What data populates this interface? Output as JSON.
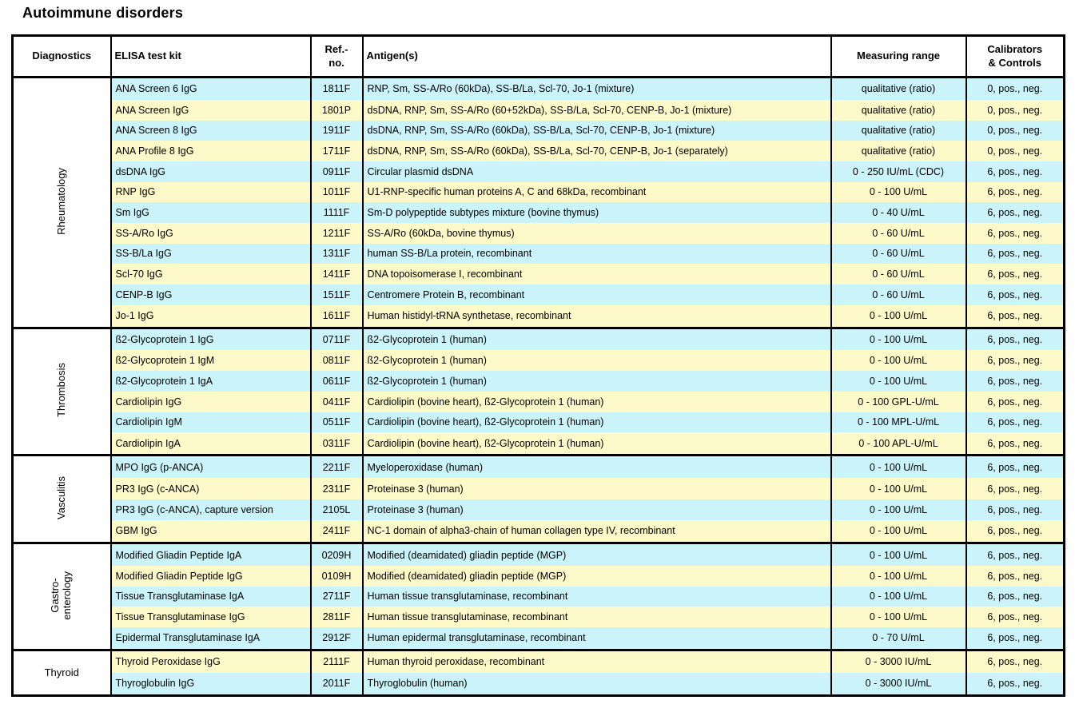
{
  "title": "Autoimmune disorders",
  "table": {
    "headers": {
      "diagnostics": "Diagnostics",
      "kit": "ELISA test kit",
      "ref": "Ref.-\nno.",
      "antigen": "Antigen(s)",
      "range": "Measuring range",
      "calibrators": "Calibrators\n& Controls"
    },
    "row_colors": {
      "cyan": "#cbf3fa",
      "yellow": "#fdf9c8"
    },
    "groups": [
      {
        "name": "Rheumatology",
        "orientation": "vertical",
        "rows": [
          {
            "kit": "ANA Screen 6 IgG",
            "ref": "1811F",
            "antigen": "RNP, Sm, SS-A/Ro (60kDa), SS-B/La, Scl-70, Jo-1 (mixture)",
            "range": "qualitative (ratio)",
            "cal": "0, pos., neg."
          },
          {
            "kit": "ANA Screen IgG",
            "ref": "1801P",
            "antigen": "dsDNA, RNP, Sm, SS-A/Ro (60+52kDa), SS-B/La, Scl-70, CENP-B, Jo-1 (mixture)",
            "range": "qualitative (ratio)",
            "cal": "0, pos., neg."
          },
          {
            "kit": "ANA Screen 8 IgG",
            "ref": "1911F",
            "antigen": "dsDNA, RNP, Sm, SS-A/Ro (60kDa), SS-B/La, Scl-70, CENP-B, Jo-1 (mixture)",
            "range": "qualitative (ratio)",
            "cal": "0, pos., neg."
          },
          {
            "kit": "ANA Profile 8 IgG",
            "ref": "1711F",
            "antigen": "dsDNA, RNP, Sm, SS-A/Ro (60kDa), SS-B/La, Scl-70, CENP-B, Jo-1 (separately)",
            "range": "qualitative (ratio)",
            "cal": "0, pos., neg."
          },
          {
            "kit": "dsDNA IgG",
            "ref": "0911F",
            "antigen": "Circular plasmid dsDNA",
            "range": "0 - 250 IU/mL (CDC)",
            "cal": "6, pos., neg."
          },
          {
            "kit": "RNP IgG",
            "ref": "1011F",
            "antigen": "U1-RNP-specific human proteins A, C and 68kDa, recombinant",
            "range": "0 - 100 U/mL",
            "cal": "6, pos., neg."
          },
          {
            "kit": "Sm IgG",
            "ref": "1111F",
            "antigen": "Sm-D polypeptide subtypes mixture (bovine thymus)",
            "range": "0 - 40 U/mL",
            "cal": "6, pos., neg."
          },
          {
            "kit": "SS-A/Ro IgG",
            "ref": "1211F",
            "antigen": "SS-A/Ro (60kDa, bovine thymus)",
            "range": "0 - 60 U/mL",
            "cal": "6, pos., neg."
          },
          {
            "kit": "SS-B/La IgG",
            "ref": "1311F",
            "antigen": "human SS-B/La protein, recombinant",
            "range": "0 - 60 U/mL",
            "cal": "6, pos., neg."
          },
          {
            "kit": "Scl-70 IgG",
            "ref": "1411F",
            "antigen": "DNA topoisomerase I, recombinant",
            "range": "0 - 60 U/mL",
            "cal": "6, pos., neg."
          },
          {
            "kit": "CENP-B IgG",
            "ref": "1511F",
            "antigen": "Centromere Protein B, recombinant",
            "range": "0 - 60 U/mL",
            "cal": "6, pos., neg."
          },
          {
            "kit": "Jo-1 IgG",
            "ref": "1611F",
            "antigen": "Human histidyl-tRNA synthetase, recombinant",
            "range": "0 - 100 U/mL",
            "cal": "6, pos., neg."
          }
        ]
      },
      {
        "name": "Thrombosis",
        "orientation": "vertical",
        "rows": [
          {
            "kit": "ß2-Glycoprotein 1 IgG",
            "ref": "0711F",
            "antigen": "ß2-Glycoprotein 1 (human)",
            "range": "0 - 100 U/mL",
            "cal": "6, pos., neg."
          },
          {
            "kit": "ß2-Glycoprotein 1 IgM",
            "ref": "0811F",
            "antigen": "ß2-Glycoprotein 1 (human)",
            "range": "0 - 100 U/mL",
            "cal": "6, pos., neg."
          },
          {
            "kit": "ß2-Glycoprotein 1 IgA",
            "ref": "0611F",
            "antigen": "ß2-Glycoprotein 1 (human)",
            "range": "0 - 100 U/mL",
            "cal": "6, pos., neg."
          },
          {
            "kit": "Cardiolipin IgG",
            "ref": "0411F",
            "antigen": "Cardiolipin (bovine heart), ß2-Glycoprotein 1 (human)",
            "range": "0 - 100 GPL-U/mL",
            "cal": "6, pos., neg."
          },
          {
            "kit": "Cardiolipin IgM",
            "ref": "0511F",
            "antigen": "Cardiolipin (bovine heart), ß2-Glycoprotein 1 (human)",
            "range": "0 - 100 MPL-U/mL",
            "cal": "6, pos., neg."
          },
          {
            "kit": "Cardiolipin IgA",
            "ref": "0311F",
            "antigen": "Cardiolipin (bovine heart), ß2-Glycoprotein 1 (human)",
            "range": "0 - 100 APL-U/mL",
            "cal": "6, pos., neg."
          }
        ]
      },
      {
        "name": "Vasculitis",
        "orientation": "vertical",
        "rows": [
          {
            "kit": "MPO IgG (p-ANCA)",
            "ref": "2211F",
            "antigen": "Myeloperoxidase (human)",
            "range": "0 - 100 U/mL",
            "cal": "6, pos., neg."
          },
          {
            "kit": "PR3 IgG (c-ANCA)",
            "ref": "2311F",
            "antigen": "Proteinase 3 (human)",
            "range": "0 - 100 U/mL",
            "cal": "6, pos., neg."
          },
          {
            "kit": "PR3 IgG (c-ANCA), capture version",
            "ref": "2105L",
            "antigen": "Proteinase 3 (human)",
            "range": "0 - 100 U/mL",
            "cal": "6, pos., neg."
          },
          {
            "kit": "GBM IgG",
            "ref": "2411F",
            "antigen": "NC-1 domain of alpha3-chain of human collagen type IV, recombinant",
            "range": "0 - 100 U/mL",
            "cal": "6, pos., neg."
          }
        ]
      },
      {
        "name": "Gastro-\nenterology",
        "orientation": "vertical",
        "rows": [
          {
            "kit": "Modified Gliadin Peptide IgA",
            "ref": "0209H",
            "antigen": "Modified (deamidated) gliadin peptide (MGP)",
            "range": "0 - 100 U/mL",
            "cal": "6, pos., neg."
          },
          {
            "kit": "Modified Gliadin Peptide IgG",
            "ref": "0109H",
            "antigen": "Modified (deamidated) gliadin peptide (MGP)",
            "range": "0 - 100 U/mL",
            "cal": "6, pos., neg."
          },
          {
            "kit": "Tissue Transglutaminase IgA",
            "ref": "2711F",
            "antigen": "Human tissue transglutaminase, recombinant",
            "range": "0 - 100 U/mL",
            "cal": "6, pos., neg."
          },
          {
            "kit": "Tissue Transglutaminase IgG",
            "ref": "2811F",
            "antigen": "Human tissue transglutaminase, recombinant",
            "range": "0 - 100 U/mL",
            "cal": "6, pos., neg."
          },
          {
            "kit": "Epidermal Transglutaminase IgA",
            "ref": "2912F",
            "antigen": "Human epidermal transglutaminase, recombinant",
            "range": "0 - 70 U/mL",
            "cal": "6, pos., neg."
          }
        ]
      },
      {
        "name": "Thyroid",
        "orientation": "horizontal",
        "rows": [
          {
            "kit": "Thyroid Peroxidase IgG",
            "ref": "2111F",
            "antigen": "Human thyroid peroxidase, recombinant",
            "range": "0 - 3000 IU/mL",
            "cal": "6, pos., neg."
          },
          {
            "kit": "Thyroglobulin IgG",
            "ref": "2011F",
            "antigen": "Thyroglobulin (human)",
            "range": "0 - 3000 IU/mL",
            "cal": "6, pos., neg."
          }
        ]
      }
    ]
  }
}
